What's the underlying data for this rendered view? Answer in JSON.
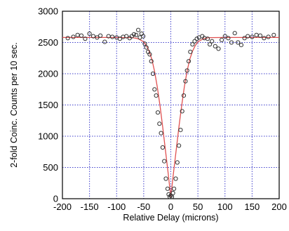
{
  "chart_data": {
    "type": "scatter",
    "title": "",
    "xlabel": "Relative Delay (microns)",
    "ylabel": "2-fold Coinc. Counts per 10 sec.",
    "xlim": [
      -200,
      200
    ],
    "ylim": [
      0,
      3000
    ],
    "xticks": [
      -200,
      -150,
      -100,
      -50,
      0,
      50,
      100,
      150,
      200
    ],
    "yticks": [
      0,
      500,
      1000,
      1500,
      2000,
      2500,
      3000
    ],
    "xtick_labels": [
      "-200",
      "-150",
      "-100",
      "-50",
      "0",
      "50",
      "100",
      "150",
      "200"
    ],
    "ytick_labels": [
      "0",
      "500",
      "1000",
      "1500",
      "2000",
      "2500",
      "3000"
    ],
    "grid": true,
    "grid_style": "dotted",
    "colors": {
      "points": "#333333",
      "fit": "#e05050",
      "grid": "#4040cc",
      "frame": "#000000"
    },
    "series": [
      {
        "type": "scatter",
        "x": [
          -190,
          -180,
          -172,
          -165,
          -158,
          -150,
          -143,
          -136,
          -130,
          -122,
          -115,
          -108,
          -100,
          -94,
          -88,
          -82,
          -76,
          -72,
          -68,
          -64,
          -60,
          -57,
          -54,
          -51,
          -48,
          -45,
          -42,
          -39,
          -36,
          -33,
          -30,
          -27,
          -24,
          -21,
          -18,
          -15,
          -12,
          -9,
          -6,
          -4,
          -2,
          0,
          2,
          4,
          6,
          9,
          12,
          15,
          18,
          21,
          24,
          27,
          30,
          33,
          36,
          40,
          44,
          48,
          52,
          58,
          62,
          68,
          72,
          76,
          82,
          88,
          94,
          100,
          106,
          112,
          118,
          124,
          130,
          136,
          142,
          150,
          158,
          165,
          172,
          180,
          190
        ],
        "y": [
          2570,
          2590,
          2620,
          2610,
          2560,
          2640,
          2600,
          2580,
          2610,
          2510,
          2600,
          2590,
          2580,
          2560,
          2590,
          2600,
          2570,
          2600,
          2630,
          2620,
          2700,
          2580,
          2640,
          2600,
          2480,
          2420,
          2350,
          2310,
          2200,
          2000,
          1750,
          1650,
          1380,
          1200,
          1050,
          820,
          600,
          320,
          160,
          70,
          30,
          50,
          30,
          90,
          160,
          320,
          580,
          850,
          1100,
          1400,
          1650,
          1880,
          2050,
          2200,
          2350,
          2470,
          2520,
          2560,
          2580,
          2600,
          2570,
          2560,
          2470,
          2520,
          2440,
          2400,
          2540,
          2600,
          2570,
          2500,
          2650,
          2500,
          2460,
          2570,
          2600,
          2590,
          2620,
          2610,
          2570,
          2590,
          2620
        ]
      },
      {
        "type": "line",
        "x": [
          -200,
          -100,
          -70,
          -60,
          -50,
          -45,
          -40,
          -35,
          -30,
          -25,
          -20,
          -15,
          -10,
          -5,
          0,
          5,
          10,
          15,
          20,
          25,
          30,
          35,
          40,
          45,
          50,
          60,
          70,
          100,
          200
        ],
        "y": [
          2580,
          2580,
          2577,
          2560,
          2510,
          2450,
          2360,
          2230,
          2040,
          1790,
          1490,
          1150,
          780,
          420,
          30,
          420,
          780,
          1150,
          1490,
          1790,
          2040,
          2230,
          2360,
          2450,
          2510,
          2560,
          2577,
          2580,
          2580
        ]
      }
    ]
  }
}
